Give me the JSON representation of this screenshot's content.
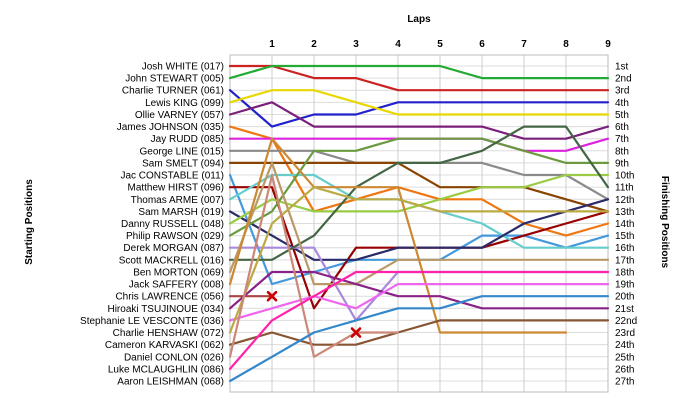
{
  "chart_data": {
    "type": "line",
    "title": "",
    "top_axis_label": "Laps",
    "left_axis_label": "Starting Positions",
    "right_axis_label": "Finishing Positions",
    "laps": [
      0,
      1,
      2,
      3,
      4,
      5,
      6,
      7,
      8,
      9
    ],
    "lap_tick_labels": [
      "1",
      "2",
      "3",
      "4",
      "5",
      "6",
      "7",
      "8",
      "9"
    ],
    "ylim": [
      1,
      27
    ],
    "grid": true,
    "drivers": [
      "Josh WHITE (017)",
      "John STEWART (005)",
      "Charlie TURNER (061)",
      "Lewis KING (099)",
      "Ollie VARNEY (057)",
      "James JOHNSON (035)",
      "Jay RUDD (085)",
      "George LINE (015)",
      "Sam SMELT (094)",
      "Jac CONSTABLE (011)",
      "Matthew HIRST (096)",
      "Thomas ARME (007)",
      "Sam MARSH (019)",
      "Danny RUSSELL (048)",
      "Philip RAWSON (029)",
      "Derek MORGAN (087)",
      "Scott MACKRELL (016)",
      "Ben MORTON (069)",
      "Jack SAFFERY (008)",
      "Chris LAWRENCE (056)",
      "Hiroaki TSUJINOUE (034)",
      "Stephanie LE VESCONTE (036)",
      "Charlie HENSHAW (072)",
      "Cameron KARVASKI (062)",
      "Daniel CONLON (026)",
      "Luke MCLAUGHLIN (086)",
      "Aaron LEISHMAN (068)"
    ],
    "finishing_positions": [
      "1st",
      "2nd",
      "3rd",
      "4th",
      "5th",
      "6th",
      "7th",
      "8th",
      "9th",
      "10th",
      "11th",
      "12th",
      "13th",
      "14th",
      "15th",
      "16th",
      "17th",
      "18th",
      "19th",
      "20th",
      "21st",
      "22nd",
      "23rd",
      "24th",
      "25th",
      "26th",
      "27th"
    ],
    "series": [
      {
        "color": "#cc2222",
        "positions": [
          1,
          1,
          2,
          2,
          3,
          3,
          3,
          3,
          3,
          3
        ]
      },
      {
        "color": "#22aa33",
        "positions": [
          2,
          1,
          1,
          1,
          1,
          1,
          2,
          2,
          2,
          2
        ]
      },
      {
        "color": "#2222cc",
        "positions": [
          3,
          6,
          5,
          5,
          4,
          4,
          4,
          4,
          4,
          4
        ]
      },
      {
        "color": "#e8d800",
        "positions": [
          4,
          3,
          3,
          4,
          5,
          5,
          5,
          5,
          5,
          5
        ]
      },
      {
        "color": "#7a1f7a",
        "positions": [
          5,
          4,
          6,
          6,
          6,
          6,
          6,
          7,
          7,
          6
        ]
      },
      {
        "color": "#ee7711",
        "positions": [
          6,
          7,
          13,
          12,
          11,
          12,
          12,
          14,
          15,
          14
        ]
      },
      {
        "color": "#dd22dd",
        "positions": [
          7,
          7,
          7,
          7,
          7,
          7,
          7,
          8,
          8,
          7
        ]
      },
      {
        "color": "#8a8a8a",
        "positions": [
          8,
          8,
          8,
          9,
          9,
          9,
          9,
          10,
          10,
          12
        ]
      },
      {
        "color": "#884400",
        "positions": [
          9,
          9,
          9,
          9,
          9,
          11,
          11,
          11,
          12,
          13
        ]
      },
      {
        "color": "#4499dd",
        "positions": [
          10,
          19,
          18,
          17,
          17,
          17,
          15,
          15,
          16,
          15
        ]
      },
      {
        "color": "#990000",
        "positions": [
          11,
          11,
          21,
          16,
          16,
          16,
          16,
          15,
          14,
          13
        ]
      },
      {
        "color": "#66cccc",
        "positions": [
          12,
          10,
          10,
          12,
          12,
          13,
          14,
          16,
          16,
          16
        ]
      },
      {
        "color": "#2a2a6a",
        "positions": [
          13,
          15,
          17,
          17,
          16,
          16,
          16,
          14,
          13,
          12
        ]
      },
      {
        "color": "#99cc44",
        "positions": [
          14,
          12,
          13,
          13,
          13,
          12,
          11,
          11,
          10,
          10
        ]
      },
      {
        "color": "#6a9a40",
        "positions": [
          15,
          13,
          8,
          8,
          7,
          7,
          7,
          8,
          9,
          9
        ]
      },
      {
        "color": "#aa88dd",
        "positions": [
          16,
          16,
          16,
          22,
          18,
          18,
          18,
          18,
          18,
          18
        ]
      },
      {
        "color": "#446644",
        "positions": [
          17,
          17,
          15,
          11,
          9,
          9,
          8,
          6,
          6,
          11
        ]
      },
      {
        "color": "#bb9966",
        "positions": [
          18,
          9,
          19,
          19,
          17,
          17,
          17,
          17,
          17,
          17
        ]
      },
      {
        "color": "#cc8833",
        "positions": [
          19,
          7,
          11,
          11,
          11,
          23,
          23,
          23,
          23,
          null
        ]
      },
      {
        "color": "#aa4444",
        "positions": [
          20,
          20,
          null,
          null,
          null,
          null,
          null,
          null,
          null,
          null
        ]
      },
      {
        "color": "#882288",
        "positions": [
          21,
          18,
          18,
          19,
          20,
          20,
          21,
          21,
          21,
          21
        ]
      },
      {
        "color": "#ee66ee",
        "positions": [
          22,
          21,
          20,
          21,
          19,
          19,
          19,
          19,
          19,
          19
        ]
      },
      {
        "color": "#bbaa44",
        "positions": [
          23,
          14,
          11,
          12,
          12,
          13,
          13,
          13,
          13,
          13
        ]
      },
      {
        "color": "#885533",
        "positions": [
          24,
          23,
          24,
          24,
          23,
          22,
          22,
          22,
          22,
          22
        ]
      },
      {
        "color": "#cc8877",
        "positions": [
          25,
          10,
          25,
          23,
          23,
          null,
          null,
          null,
          null,
          null
        ]
      },
      {
        "color": "#ff22aa",
        "positions": [
          26,
          22,
          20,
          18,
          18,
          18,
          18,
          18,
          18,
          18
        ]
      },
      {
        "color": "#3388cc",
        "positions": [
          27,
          25,
          23,
          22,
          21,
          21,
          20,
          20,
          20,
          20
        ]
      }
    ],
    "retirements": [
      {
        "lap": 1,
        "position": 20,
        "color": "#cc0000"
      },
      {
        "lap": 3,
        "position": 23,
        "color": "#cc0000"
      }
    ]
  }
}
